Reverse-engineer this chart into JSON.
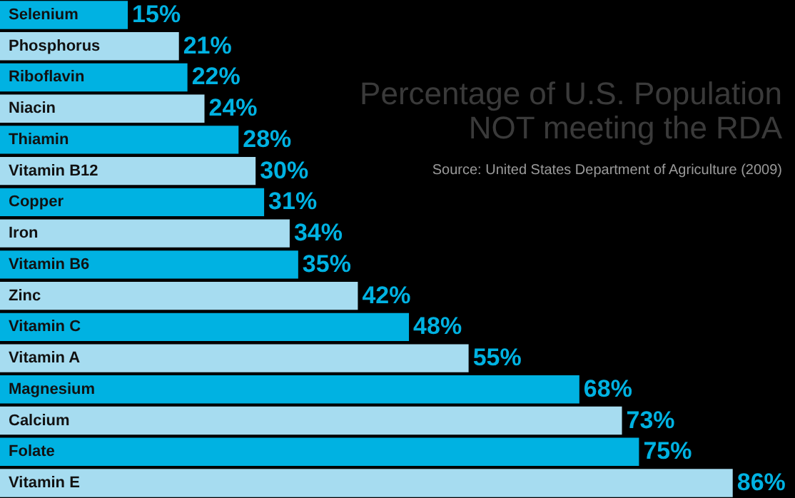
{
  "chart_data": {
    "type": "bar",
    "orientation": "horizontal",
    "title": "Percentage of U.S. Population\nNOT meeting the RDA",
    "annotations": [
      "Source: United States Department of Agriculture (2009)"
    ],
    "categories": [
      "Selenium",
      "Phosphorus",
      "Riboflavin",
      "Niacin",
      "Thiamin",
      "Vitamin B12",
      "Copper",
      "Iron",
      "Vitamin B6",
      "Zinc",
      "Vitamin C",
      "Vitamin A",
      "Magnesium",
      "Calcium",
      "Folate",
      "Vitamin E"
    ],
    "values": [
      15,
      21,
      22,
      24,
      28,
      30,
      31,
      34,
      35,
      42,
      48,
      55,
      68,
      73,
      75,
      86
    ],
    "value_labels": [
      "15%",
      "21%",
      "22%",
      "24%",
      "28%",
      "30%",
      "31%",
      "34%",
      "35%",
      "42%",
      "48%",
      "55%",
      "68%",
      "73%",
      "75%",
      "86%"
    ],
    "colors": [
      "#00b2e2",
      "#a6dcf0",
      "#00b2e2",
      "#a6dcf0",
      "#00b2e2",
      "#a6dcf0",
      "#00b2e2",
      "#a6dcf0",
      "#00b2e2",
      "#a6dcf0",
      "#00b2e2",
      "#a6dcf0",
      "#00b2e2",
      "#a6dcf0",
      "#00b2e2",
      "#a6dcf0"
    ],
    "grid": false
  }
}
